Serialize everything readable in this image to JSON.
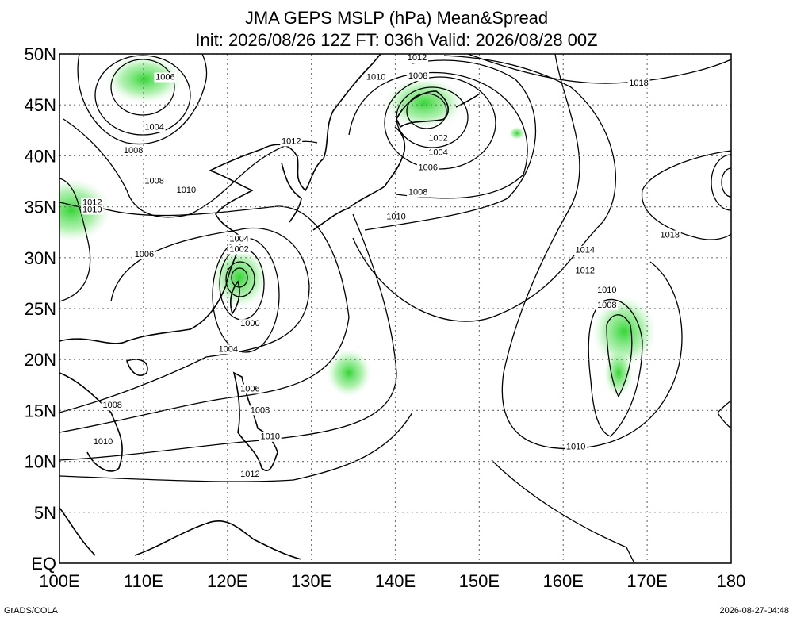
{
  "header": {
    "title": "JMA GEPS MSLP (hPa) Mean&Spread",
    "subtitle": "Init: 2026/08/26 12Z  FT: 036h  Valid: 2026/08/28 00Z"
  },
  "map": {
    "lonlim": [
      100,
      180
    ],
    "latlim": [
      0,
      50
    ],
    "lon_ticks": [
      {
        "value": 100,
        "label": "100E"
      },
      {
        "value": 110,
        "label": "110E"
      },
      {
        "value": 120,
        "label": "120E"
      },
      {
        "value": 130,
        "label": "130E"
      },
      {
        "value": 140,
        "label": "140E"
      },
      {
        "value": 150,
        "label": "150E"
      },
      {
        "value": 160,
        "label": "160E"
      },
      {
        "value": 170,
        "label": "170E"
      },
      180
    ],
    "lat_ticks": [
      {
        "value": 0,
        "label": "EQ"
      },
      {
        "value": 5,
        "label": "5N"
      },
      {
        "value": 10,
        "label": "10N"
      },
      {
        "value": 15,
        "label": "15N"
      },
      {
        "value": 20,
        "label": "20N"
      },
      {
        "value": 25,
        "label": "25N"
      },
      {
        "value": 30,
        "label": "30N"
      },
      {
        "value": 35,
        "label": "35N"
      },
      {
        "value": 40,
        "label": "40N"
      },
      {
        "value": 45,
        "label": "45N"
      },
      {
        "value": 50,
        "label": "50N"
      }
    ],
    "grid": true,
    "contour_labels": [
      {
        "text": 1006,
        "lon": 112.6,
        "lat": 47.7
      },
      {
        "text": 1004,
        "lon": 111.3,
        "lat": 42.8
      },
      {
        "text": 1008,
        "lon": 108.8,
        "lat": 40.5
      },
      {
        "text": 1008,
        "lon": 111.3,
        "lat": 37.5
      },
      {
        "text": 1010,
        "lon": 115.1,
        "lat": 36.6
      },
      {
        "text": 1012,
        "lon": 103.9,
        "lat": 35.4
      },
      {
        "text": 1010,
        "lon": 103.9,
        "lat": 34.7
      },
      {
        "text": 1006,
        "lon": 110.1,
        "lat": 30.3
      },
      {
        "text": 1012,
        "lon": 127.6,
        "lat": 41.4
      },
      {
        "text": 1004,
        "lon": 121.4,
        "lat": 31.8
      },
      {
        "text": 1002,
        "lon": 121.4,
        "lat": 30.8
      },
      {
        "text": 1000,
        "lon": 122.7,
        "lat": 23.5
      },
      {
        "text": 1004,
        "lon": 120.1,
        "lat": 21.0
      },
      {
        "text": 1006,
        "lon": 122.7,
        "lat": 17.1
      },
      {
        "text": 1008,
        "lon": 123.9,
        "lat": 15.0
      },
      {
        "text": 1010,
        "lon": 125.1,
        "lat": 12.4
      },
      {
        "text": 1012,
        "lon": 122.7,
        "lat": 8.7
      },
      {
        "text": 1008,
        "lon": 106.3,
        "lat": 15.5
      },
      {
        "text": 1010,
        "lon": 105.2,
        "lat": 11.9
      },
      {
        "text": 1012,
        "lon": 142.6,
        "lat": 49.6
      },
      {
        "text": 1010,
        "lon": 137.7,
        "lat": 47.7
      },
      {
        "text": 1008,
        "lon": 142.7,
        "lat": 47.8
      },
      {
        "text": 1002,
        "lon": 145.1,
        "lat": 41.7
      },
      {
        "text": 1004,
        "lon": 145.1,
        "lat": 40.3
      },
      {
        "text": 1006,
        "lon": 143.9,
        "lat": 38.8
      },
      {
        "text": 1008,
        "lon": 142.7,
        "lat": 36.4
      },
      {
        "text": 1010,
        "lon": 140.1,
        "lat": 34.0
      },
      {
        "text": 1018,
        "lon": 169.0,
        "lat": 47.1
      },
      {
        "text": 1018,
        "lon": 172.7,
        "lat": 32.2
      },
      {
        "text": 1014,
        "lon": 162.6,
        "lat": 30.7
      },
      {
        "text": 1012,
        "lon": 162.6,
        "lat": 28.7
      },
      {
        "text": 1010,
        "lon": 165.2,
        "lat": 26.8
      },
      {
        "text": 1008,
        "lon": 165.2,
        "lat": 25.3
      },
      {
        "text": 1010,
        "lon": 161.5,
        "lat": 11.4
      }
    ]
  },
  "footer": {
    "left": "GrADS/COLA",
    "right": "2026-08-27-04:48"
  }
}
